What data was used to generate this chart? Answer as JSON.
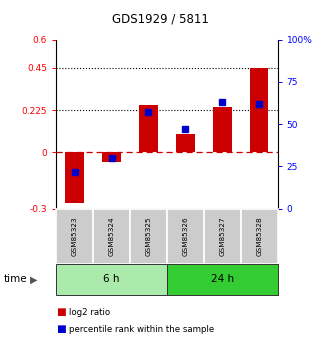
{
  "title": "GDS1929 / 5811",
  "samples": [
    "GSM85323",
    "GSM85324",
    "GSM85325",
    "GSM85326",
    "GSM85327",
    "GSM85328"
  ],
  "log2_ratio": [
    -0.27,
    -0.05,
    0.25,
    0.1,
    0.24,
    0.45
  ],
  "percentile_rank": [
    22,
    30,
    57,
    47,
    63,
    62
  ],
  "groups": [
    {
      "label": "6 h",
      "indices": [
        0,
        1,
        2
      ],
      "color": "#aaeaaa"
    },
    {
      "label": "24 h",
      "indices": [
        3,
        4,
        5
      ],
      "color": "#33cc33"
    }
  ],
  "time_label": "time",
  "ylim_left": [
    -0.3,
    0.6
  ],
  "ylim_right": [
    0,
    100
  ],
  "yticks_left": [
    -0.3,
    0,
    0.225,
    0.45,
    0.6
  ],
  "ytick_labels_left": [
    "-0.3",
    "0",
    "0.225",
    "0.45",
    "0.6"
  ],
  "yticks_right": [
    0,
    25,
    50,
    75,
    100
  ],
  "ytick_labels_right": [
    "0",
    "25",
    "50",
    "75",
    "100%"
  ],
  "dotted_lines": [
    0.45,
    0.225
  ],
  "bar_color": "#cc0000",
  "dot_color": "#0000cc",
  "zero_line_color": "#cc0000",
  "background_color": "#ffffff",
  "plot_bg_color": "#ffffff",
  "legend_log2": "log2 ratio",
  "legend_pct": "percentile rank within the sample",
  "bar_width": 0.5
}
